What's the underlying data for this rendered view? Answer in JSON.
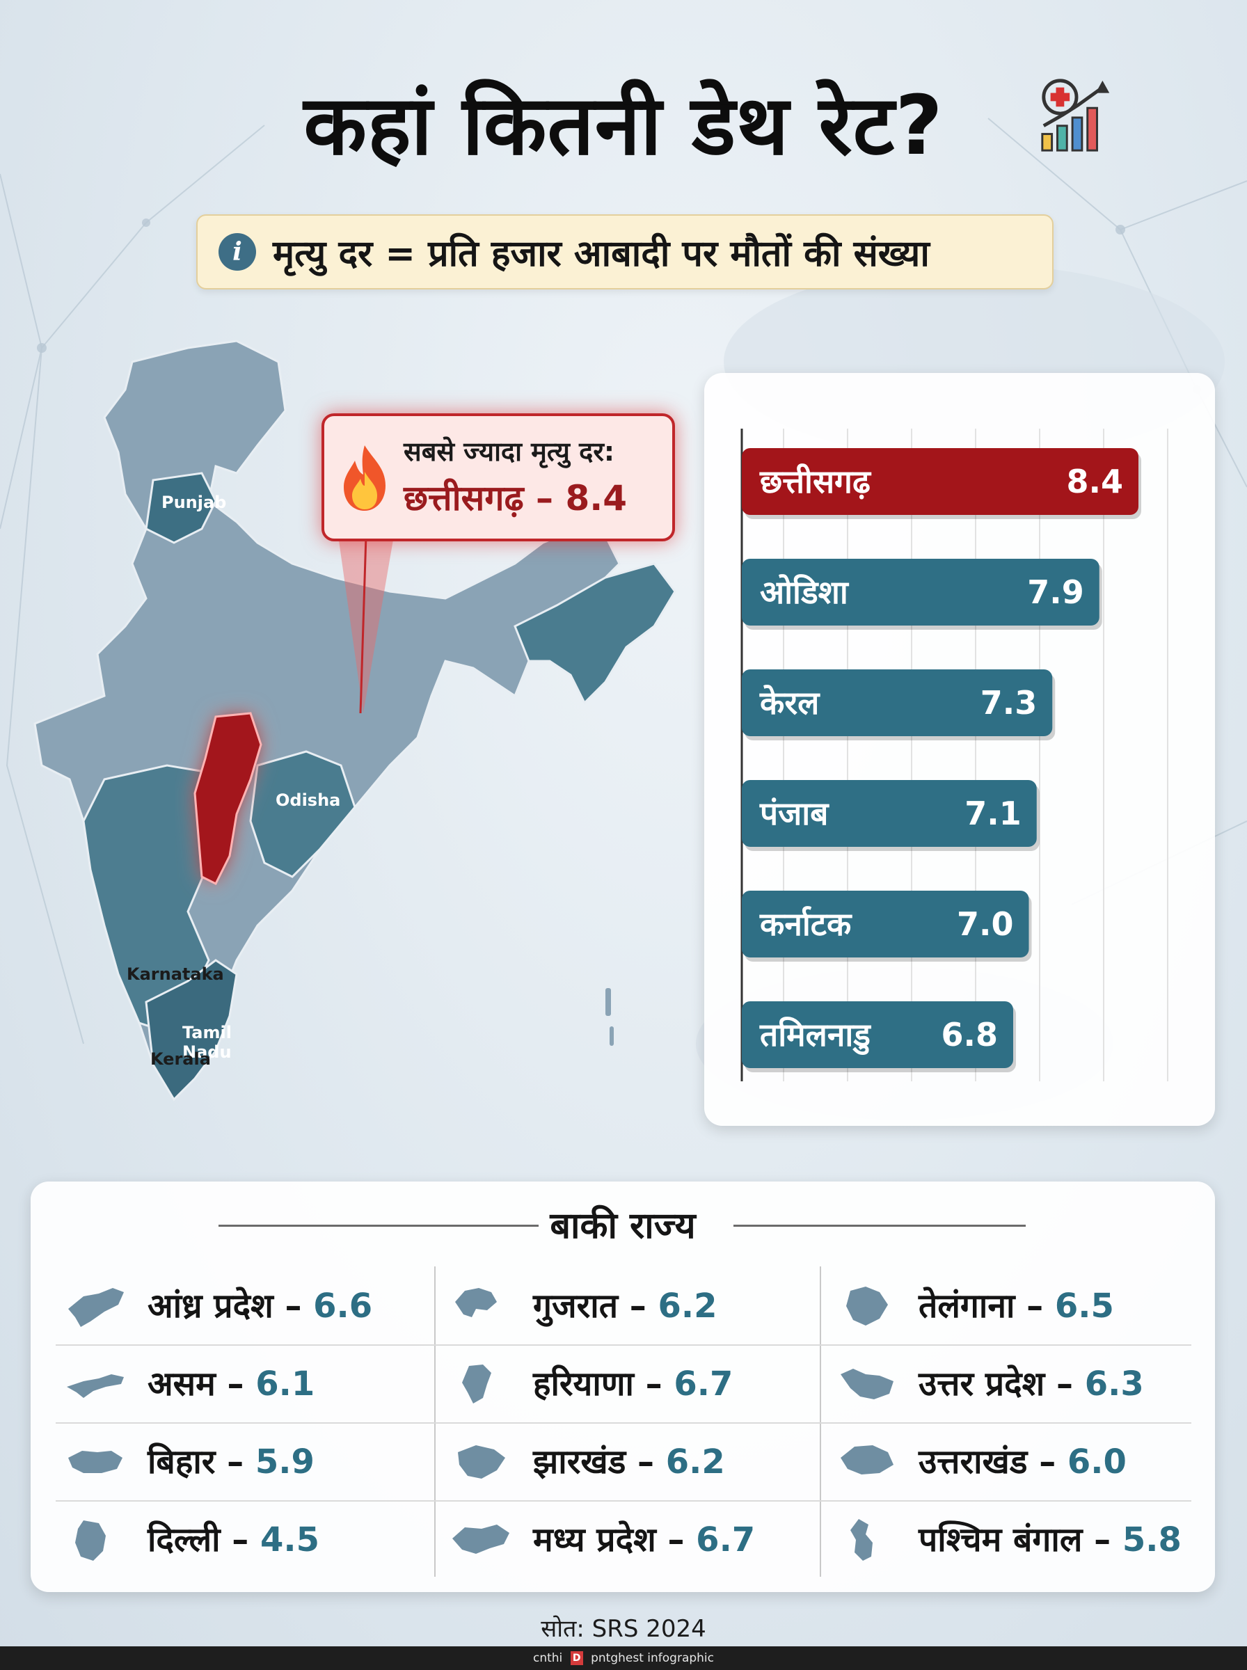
{
  "title": "कहां कितनी डेथ रेट?",
  "icons": {
    "title": "medical-chart-icon",
    "info": "info-icon",
    "callout": "fire-icon"
  },
  "definition": {
    "icon_text": "i",
    "text": "मृत्यु दर = प्रति हजार आबादी पर मौतों की संख्या"
  },
  "map": {
    "labels": {
      "punjab": "Punjab",
      "odisha": "Odisha",
      "karnataka": "Karnataka",
      "tamil_nadu_1": "Tamil",
      "tamil_nadu_2": "Nadu",
      "kerala": "Kerala"
    }
  },
  "callout": {
    "line1": "सबसे ज्यादा मृत्यु दर:",
    "line2": "छत्तीसगढ़ – 8.4"
  },
  "colors": {
    "highlight": "#a3151a",
    "bar": "#2f6f85",
    "value": "#2d6e84",
    "map_base": "#8aa3b5",
    "map_dark": "#3f6f83"
  },
  "chart_data": {
    "type": "bar",
    "orientation": "horizontal",
    "categories": [
      "छत्तीसगढ़",
      "ओडिशा",
      "केरल",
      "पंजाब",
      "कर्नाटक",
      "तमिलनाडु"
    ],
    "values": [
      8.4,
      7.9,
      7.3,
      7.1,
      7.0,
      6.8
    ],
    "value_labels": [
      "8.4",
      "7.9",
      "7.3",
      "7.1",
      "7.0",
      "6.8"
    ],
    "highlight_index": 0,
    "grid": true
  },
  "other_states": {
    "heading": "बाकी राज्य",
    "items": [
      {
        "name": "आंध्र प्रदेश",
        "value": "6.6",
        "icon": "andhra-pradesh-map-icon"
      },
      {
        "name": "गुजरात",
        "value": "6.2",
        "icon": "gujarat-map-icon"
      },
      {
        "name": "तेलंगाना",
        "value": "6.5",
        "icon": "telangana-map-icon"
      },
      {
        "name": "असम",
        "value": "6.1",
        "icon": "assam-map-icon"
      },
      {
        "name": "हरियाणा",
        "value": "6.7",
        "icon": "haryana-map-icon"
      },
      {
        "name": "उत्तर प्रदेश",
        "value": "6.3",
        "icon": "uttar-pradesh-map-icon"
      },
      {
        "name": "बिहार",
        "value": "5.9",
        "icon": "bihar-map-icon"
      },
      {
        "name": "झारखंड",
        "value": "6.2",
        "icon": "jharkhand-map-icon"
      },
      {
        "name": "उत्तराखंड",
        "value": "6.0",
        "icon": "uttarakhand-map-icon"
      },
      {
        "name": "दिल्ली",
        "value": "4.5",
        "icon": "delhi-map-icon"
      },
      {
        "name": "मध्य प्रदेश",
        "value": "6.7",
        "icon": "madhya-pradesh-map-icon"
      },
      {
        "name": "पश्चिम बंगाल",
        "value": "5.8",
        "icon": "west-bengal-map-icon"
      }
    ]
  },
  "source": "सोत: SRS 2024",
  "footer": {
    "left": "cnthi",
    "logo": "D",
    "right": "pntghest infographic"
  }
}
